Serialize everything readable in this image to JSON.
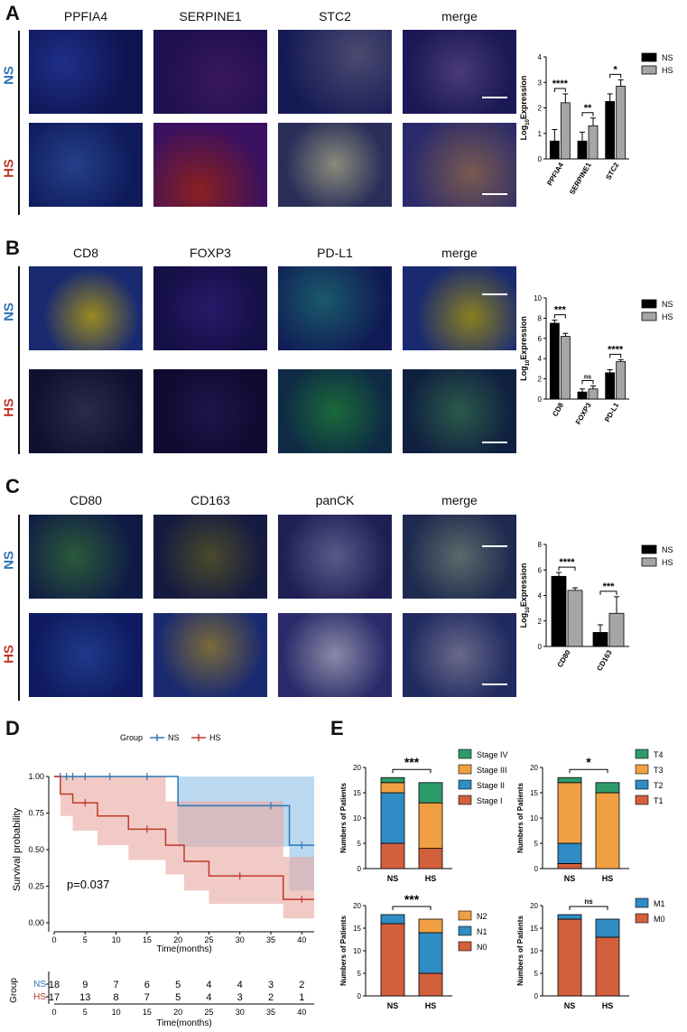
{
  "panels": {
    "A": {
      "letter": "A",
      "channels": [
        "PPFIA4",
        "SERPINE1",
        "STC2",
        "merge"
      ]
    },
    "B": {
      "letter": "B",
      "channels": [
        "CD8",
        "FOXP3",
        "PD-L1",
        "merge"
      ]
    },
    "C": {
      "letter": "C",
      "channels": [
        "CD80",
        "CD163",
        "panCK",
        "merge"
      ]
    },
    "D": {
      "letter": "D"
    },
    "E": {
      "letter": "E"
    }
  },
  "groups": {
    "ns": "NS",
    "hs": "HS"
  },
  "colors": {
    "ns": "#2e75b6",
    "hs": "#c0392b",
    "bar_ns": "#000000",
    "bar_hs": "#a6a6a6"
  },
  "chart_data": [
    {
      "id": "A",
      "type": "bar",
      "categories": [
        "PPFIA4",
        "SERPINE1",
        "STC2"
      ],
      "series": [
        {
          "name": "NS",
          "values": [
            0.7,
            0.7,
            2.25
          ],
          "err": [
            0.45,
            0.35,
            0.3
          ]
        },
        {
          "name": "HS",
          "values": [
            2.2,
            1.3,
            2.85
          ],
          "err": [
            0.35,
            0.3,
            0.25
          ]
        }
      ],
      "sig": [
        "****",
        "**",
        "*"
      ],
      "ylabel": "Log10Expression",
      "ylim": [
        0,
        4
      ],
      "yticks": [
        0,
        1,
        2,
        3,
        4
      ]
    },
    {
      "id": "B",
      "type": "bar",
      "categories": [
        "CD8",
        "FOXP3",
        "PD-L1"
      ],
      "series": [
        {
          "name": "NS",
          "values": [
            7.5,
            0.7,
            2.6
          ],
          "err": [
            0.3,
            0.3,
            0.3
          ]
        },
        {
          "name": "HS",
          "values": [
            6.2,
            1.0,
            3.7
          ],
          "err": [
            0.3,
            0.3,
            0.2
          ]
        }
      ],
      "sig": [
        "***",
        "ns",
        "****"
      ],
      "ylabel": "Log10Expression",
      "ylim": [
        0,
        10
      ],
      "yticks": [
        0,
        2,
        4,
        6,
        8,
        10
      ]
    },
    {
      "id": "C",
      "type": "bar",
      "categories": [
        "CD80",
        "CD163"
      ],
      "series": [
        {
          "name": "NS",
          "values": [
            5.5,
            1.1
          ],
          "err": [
            0.3,
            0.6
          ]
        },
        {
          "name": "HS",
          "values": [
            4.4,
            2.6
          ],
          "err": [
            0.2,
            1.3
          ]
        }
      ],
      "sig": [
        "****",
        "***"
      ],
      "ylabel": "Log10Expression",
      "ylim": [
        0,
        8
      ],
      "yticks": [
        0,
        2,
        4,
        6,
        8
      ]
    },
    {
      "id": "D",
      "type": "line",
      "subtype": "kaplan-meier",
      "legend_title": "Group",
      "legend": [
        "NS",
        "HS"
      ],
      "ylabel": "Survival probability",
      "xlabel": "Time(months)",
      "xlim": [
        0,
        42
      ],
      "ylim": [
        0,
        1
      ],
      "xticks": [
        0,
        5,
        10,
        15,
        20,
        25,
        30,
        35,
        40
      ],
      "yticks": [
        "0.00",
        "0.25",
        "0.50",
        "0.75",
        "1.00"
      ],
      "pvalue": "p=0.037",
      "series": [
        {
          "name": "NS",
          "steps": [
            [
              0,
              1.0
            ],
            [
              20,
              1.0
            ],
            [
              20,
              0.8
            ],
            [
              38,
              0.8
            ],
            [
              38,
              0.53
            ],
            [
              42,
              0.53
            ]
          ],
          "censor": [
            [
              1,
              1
            ],
            [
              2,
              1
            ],
            [
              3,
              1
            ],
            [
              5,
              1
            ],
            [
              9,
              1
            ],
            [
              15,
              1
            ],
            [
              35,
              0.8
            ],
            [
              40,
              0.53
            ]
          ],
          "ci": {
            "lower": [
              [
                0,
                1
              ],
              [
                20,
                1
              ],
              [
                20,
                0.52
              ],
              [
                38,
                0.52
              ],
              [
                38,
                0.22
              ],
              [
                42,
                0.22
              ]
            ]
          }
        },
        {
          "name": "HS",
          "steps": [
            [
              0,
              1.0
            ],
            [
              1,
              1.0
            ],
            [
              1,
              0.88
            ],
            [
              3,
              0.88
            ],
            [
              3,
              0.82
            ],
            [
              7,
              0.82
            ],
            [
              7,
              0.73
            ],
            [
              12,
              0.73
            ],
            [
              12,
              0.64
            ],
            [
              18,
              0.64
            ],
            [
              18,
              0.53
            ],
            [
              21,
              0.53
            ],
            [
              21,
              0.42
            ],
            [
              25,
              0.42
            ],
            [
              25,
              0.32
            ],
            [
              37,
              0.32
            ],
            [
              37,
              0.16
            ],
            [
              42,
              0.16
            ]
          ],
          "censor": [
            [
              5,
              0.82
            ],
            [
              15,
              0.64
            ],
            [
              30,
              0.32
            ],
            [
              40,
              0.16
            ]
          ],
          "ci": {
            "upper": [
              [
                0,
                1
              ],
              [
                18,
                1
              ],
              [
                18,
                0.83
              ],
              [
                37,
                0.83
              ],
              [
                37,
                0.45
              ],
              [
                42,
                0.45
              ]
            ],
            "lower": [
              [
                0,
                1
              ],
              [
                1,
                0.73
              ],
              [
                3,
                0.63
              ],
              [
                7,
                0.53
              ],
              [
                12,
                0.43
              ],
              [
                18,
                0.33
              ],
              [
                21,
                0.22
              ],
              [
                25,
                0.13
              ],
              [
                37,
                0.03
              ],
              [
                42,
                0.03
              ]
            ]
          }
        }
      ],
      "risk_table": {
        "title": "Group",
        "xlabel": "Time(months)",
        "rows": [
          {
            "name": "NS",
            "values": [
              18,
              9,
              7,
              6,
              5,
              4,
              4,
              3,
              2
            ]
          },
          {
            "name": "HS",
            "values": [
              17,
              13,
              8,
              7,
              5,
              4,
              3,
              2,
              1
            ]
          }
        ]
      }
    },
    {
      "id": "E1",
      "type": "bar",
      "stacked": true,
      "categories": [
        "NS",
        "HS"
      ],
      "ylabel": "Numbers of Patients",
      "ylim": [
        0,
        20
      ],
      "yticks": [
        0,
        5,
        10,
        15,
        20
      ],
      "sig": "***",
      "series": [
        {
          "name": "Stage I",
          "values": [
            5,
            4
          ],
          "color": "#d35f3c"
        },
        {
          "name": "Stage II",
          "values": [
            10,
            0
          ],
          "color": "#2f8cc4"
        },
        {
          "name": "Stage III",
          "values": [
            2,
            9
          ],
          "color": "#f0a043"
        },
        {
          "name": "Stage IV",
          "values": [
            1,
            4
          ],
          "color": "#2e9b6b"
        }
      ]
    },
    {
      "id": "E2",
      "type": "bar",
      "stacked": true,
      "categories": [
        "NS",
        "HS"
      ],
      "ylabel": "Numbers of Patients",
      "ylim": [
        0,
        20
      ],
      "yticks": [
        0,
        5,
        10,
        15,
        20
      ],
      "sig": "*",
      "series": [
        {
          "name": "T1",
          "values": [
            1,
            0
          ],
          "color": "#d35f3c"
        },
        {
          "name": "T2",
          "values": [
            4,
            0
          ],
          "color": "#2f8cc4"
        },
        {
          "name": "T3",
          "values": [
            12,
            15
          ],
          "color": "#f0a043"
        },
        {
          "name": "T4",
          "values": [
            1,
            2
          ],
          "color": "#2e9b6b"
        }
      ]
    },
    {
      "id": "E3",
      "type": "bar",
      "stacked": true,
      "categories": [
        "NS",
        "HS"
      ],
      "ylabel": "Numbers of Patients",
      "ylim": [
        0,
        20
      ],
      "yticks": [
        0,
        5,
        10,
        15,
        20
      ],
      "sig": "***",
      "series": [
        {
          "name": "N0",
          "values": [
            16,
            5
          ],
          "color": "#d35f3c"
        },
        {
          "name": "N1",
          "values": [
            2,
            9
          ],
          "color": "#2f8cc4"
        },
        {
          "name": "N2",
          "values": [
            0,
            3
          ],
          "color": "#f0a043"
        }
      ]
    },
    {
      "id": "E4",
      "type": "bar",
      "stacked": true,
      "categories": [
        "NS",
        "HS"
      ],
      "ylabel": "Numbers of Patients",
      "ylim": [
        0,
        20
      ],
      "yticks": [
        0,
        5,
        10,
        15,
        20
      ],
      "sig": "ns",
      "series": [
        {
          "name": "M0",
          "values": [
            17,
            13
          ],
          "color": "#d35f3c"
        },
        {
          "name": "M1",
          "values": [
            1,
            4
          ],
          "color": "#2f8cc4"
        }
      ]
    }
  ]
}
